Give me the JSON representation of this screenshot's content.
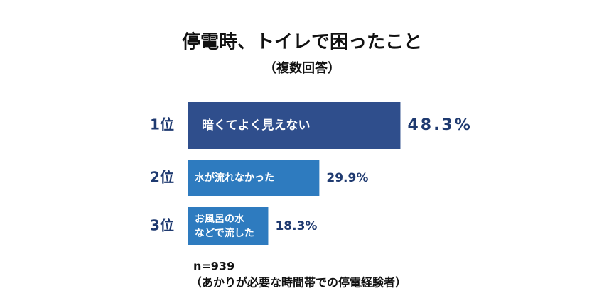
{
  "chart_data": {
    "type": "bar",
    "title": "停電時、トイレで困ったこと",
    "subtitle": "（複数回答）",
    "categories": [
      "1位",
      "2位",
      "3位"
    ],
    "bar_labels": [
      [
        "暗くてよく見えない"
      ],
      [
        "水が流れなかった"
      ],
      [
        "お風呂の水",
        "などで流した"
      ]
    ],
    "values": [
      48.3,
      29.9,
      18.3
    ],
    "value_labels": [
      "48.3%",
      "29.9%",
      "18.3%"
    ],
    "colors": [
      "#2f4e8c",
      "#2e7bbf",
      "#2e7bbf"
    ],
    "xlim": [
      0,
      50
    ],
    "notes": [
      "n=939",
      "（あかりが必要な時間帯での停電経験者）"
    ]
  }
}
